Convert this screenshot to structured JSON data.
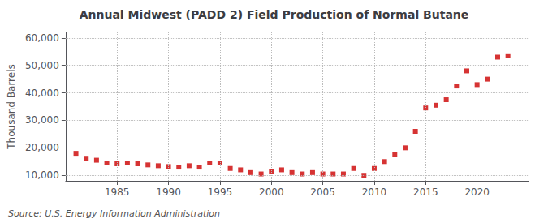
{
  "chart_data": {
    "type": "scatter",
    "title": "Annual Midwest (PADD 2) Field Production of Normal Butane",
    "ylabel": "Thousand Barrels",
    "annotations": [
      "Source: U.S. Energy Information Administration"
    ],
    "x": [
      1981,
      1982,
      1983,
      1984,
      1985,
      1986,
      1987,
      1988,
      1989,
      1990,
      1991,
      1992,
      1993,
      1994,
      1995,
      1996,
      1997,
      1998,
      1999,
      2000,
      2001,
      2002,
      2003,
      2004,
      2005,
      2006,
      2007,
      2008,
      2009,
      2010,
      2011,
      2012,
      2013,
      2014,
      2015,
      2016,
      2017,
      2018,
      2019,
      2020,
      2021,
      2022,
      2023
    ],
    "values": [
      18000,
      16200,
      15500,
      14500,
      14200,
      14500,
      14200,
      13800,
      13500,
      13200,
      13000,
      13500,
      13000,
      14500,
      14500,
      12500,
      12000,
      11000,
      10500,
      11500,
      12000,
      11000,
      10500,
      11000,
      10500,
      10500,
      10500,
      12500,
      10000,
      12500,
      15000,
      17500,
      20000,
      26000,
      34500,
      35500,
      37500,
      42500,
      48000,
      43000,
      45000,
      53000,
      53500
    ],
    "color": "#cc0000",
    "marker": "square",
    "xlim": [
      1980,
      2025
    ],
    "xticks": [
      1985,
      1990,
      1995,
      2000,
      2005,
      2010,
      2015,
      2020
    ],
    "ylim": [
      8000,
      62000
    ],
    "yticks": [
      {
        "value": 10000,
        "label": "10,000"
      },
      {
        "value": 20000,
        "label": "20,000"
      },
      {
        "value": 30000,
        "label": "30,000"
      },
      {
        "value": 40000,
        "label": "40,000"
      },
      {
        "value": 50000,
        "label": "50,000"
      },
      {
        "value": 60000,
        "label": "60,000"
      }
    ],
    "grid": true
  }
}
